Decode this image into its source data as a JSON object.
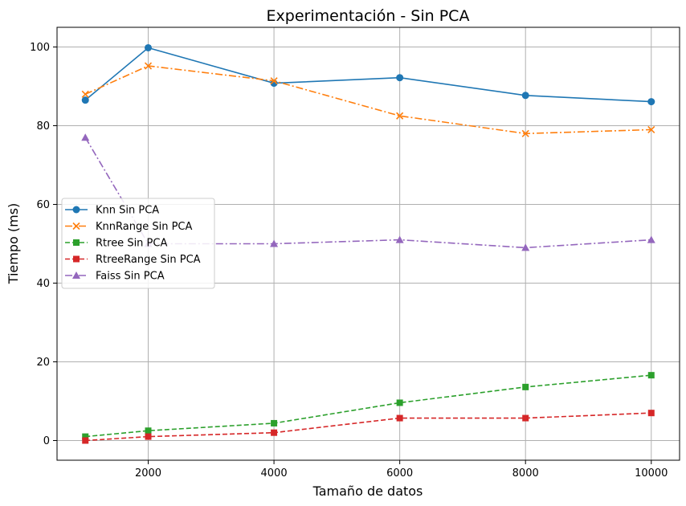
{
  "chart_data": {
    "type": "line",
    "title": "Experimentación - Sin PCA",
    "xlabel": "Tamaño de datos",
    "ylabel": "Tiempo (ms)",
    "x": [
      1000,
      2000,
      4000,
      6000,
      8000,
      10000
    ],
    "xlim": [
      550,
      10450
    ],
    "ylim": [
      -5,
      105
    ],
    "xticks": [
      2000,
      4000,
      6000,
      8000,
      10000
    ],
    "yticks": [
      0,
      20,
      40,
      60,
      80,
      100
    ],
    "grid": true,
    "legend_position": "center-left",
    "series": [
      {
        "name": "Knn Sin PCA",
        "values": [
          86.5,
          99.8,
          90.8,
          92.2,
          87.7,
          86.1
        ],
        "color": "#1f77b4",
        "marker": "circle",
        "dash": "solid"
      },
      {
        "name": "KnnRange Sin PCA",
        "values": [
          88.0,
          95.2,
          91.4,
          82.5,
          78.0,
          79.0
        ],
        "color": "#ff7f0e",
        "marker": "x",
        "dash": "dashdot"
      },
      {
        "name": "Rtree Sin PCA",
        "values": [
          1.0,
          2.5,
          4.4,
          9.6,
          13.6,
          16.6
        ],
        "color": "#2ca02c",
        "marker": "square",
        "dash": "dashed"
      },
      {
        "name": "RtreeRange Sin PCA",
        "values": [
          0.0,
          1.0,
          2.0,
          5.7,
          5.7,
          7.0
        ],
        "color": "#d62728",
        "marker": "square",
        "dash": "dashed"
      },
      {
        "name": "Faiss Sin PCA",
        "values": [
          77.0,
          50.0,
          50.0,
          51.0,
          49.0,
          51.0
        ],
        "color": "#9467bd",
        "marker": "triangle",
        "dash": "dashdot"
      }
    ]
  }
}
